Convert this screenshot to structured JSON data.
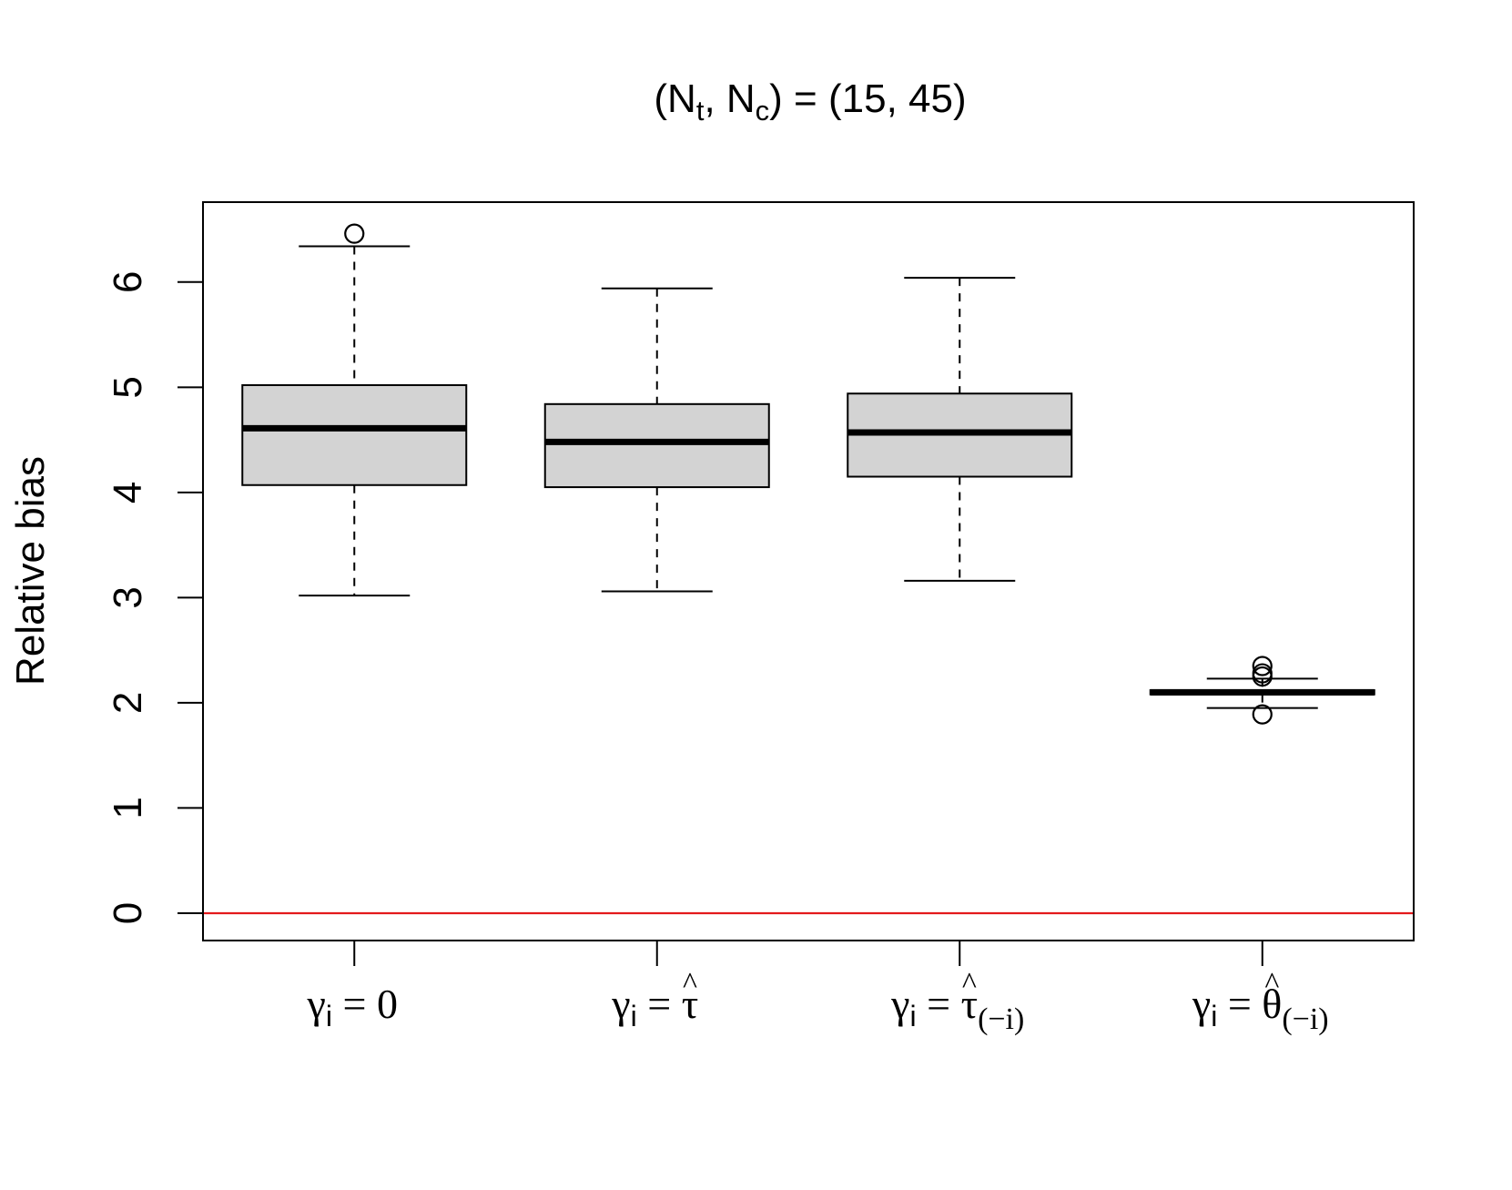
{
  "chart_data": {
    "type": "box",
    "title": {
      "open": "(N",
      "sub1": "t",
      "mid": ", N",
      "sub2": "c",
      "close": ") = (15, 45)"
    },
    "ylabel": "Relative bias",
    "xlabel": "",
    "ylim": [
      -0.26,
      6.76
    ],
    "yticks": [
      0,
      1,
      2,
      3,
      4,
      5,
      6
    ],
    "grid": false,
    "reference_line": {
      "y": 0,
      "color": "#e41a1c"
    },
    "box_fill": "#d3d3d3",
    "categories": [
      {
        "gamma": "γ",
        "sub": "i",
        "eq": " = ",
        "value": "0",
        "hat": "",
        "subscript": ""
      },
      {
        "gamma": "γ",
        "sub": "i",
        "eq": " = ",
        "value": "τ",
        "hat": "^",
        "subscript": ""
      },
      {
        "gamma": "γ",
        "sub": "i",
        "eq": " = ",
        "value": "τ",
        "hat": "^",
        "subscript": "(−i)"
      },
      {
        "gamma": "γ",
        "sub": "i",
        "eq": " = ",
        "value": "θ",
        "hat": "^",
        "subscript": "(−i)"
      }
    ],
    "boxes": [
      {
        "whisker_low": 3.02,
        "q1": 4.07,
        "median": 4.61,
        "q3": 5.02,
        "whisker_high": 6.34,
        "outliers": [
          6.46
        ]
      },
      {
        "whisker_low": 3.06,
        "q1": 4.05,
        "median": 4.48,
        "q3": 4.84,
        "whisker_high": 5.94,
        "outliers": []
      },
      {
        "whisker_low": 3.16,
        "q1": 4.15,
        "median": 4.57,
        "q3": 4.94,
        "whisker_high": 6.04,
        "outliers": []
      },
      {
        "whisker_low": 1.95,
        "q1": 2.08,
        "median": 2.1,
        "q3": 2.12,
        "whisker_high": 2.23,
        "outliers": [
          1.89,
          2.25,
          2.28,
          2.35
        ]
      }
    ]
  }
}
